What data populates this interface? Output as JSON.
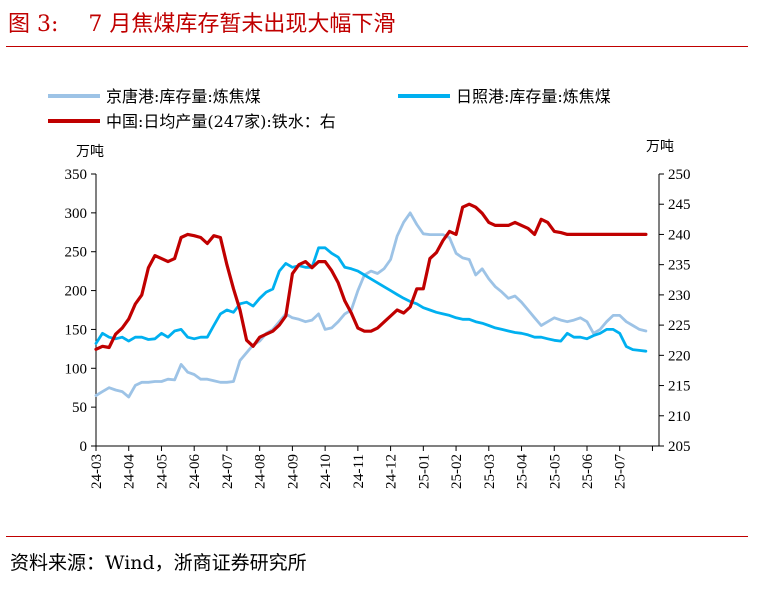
{
  "header": {
    "figure_number": "图 3:",
    "title": "7 月焦煤库存暂未出现大幅下滑"
  },
  "footer": {
    "source": "资料来源：Wind，浙商证券研究所"
  },
  "colors": {
    "title_red": "#c00000",
    "jingtang": "#9dc3e6",
    "rizhao": "#00b0f0",
    "china_iron": "#c00000"
  },
  "chart_data": {
    "type": "line",
    "y_left": {
      "unit": "万吨",
      "range": [
        0,
        350
      ],
      "ticks": [
        0,
        50,
        100,
        150,
        200,
        250,
        300,
        350
      ]
    },
    "y_right": {
      "unit": "万吨",
      "range": [
        205,
        250
      ],
      "ticks": [
        205,
        210,
        215,
        220,
        225,
        230,
        235,
        240,
        245,
        250
      ]
    },
    "x_range": [
      0,
      17.2
    ],
    "categories": [
      "24-03",
      "24-04",
      "24-05",
      "24-06",
      "24-07",
      "24-08",
      "24-09",
      "24-10",
      "24-11",
      "24-12",
      "25-01",
      "25-02",
      "25-03",
      "25-04",
      "25-05",
      "25-06",
      "25-07"
    ],
    "grid": false,
    "legend": "top",
    "series": [
      {
        "name": "京唐港:库存量:炼焦煤",
        "axis": "left",
        "color": "#9dc3e6",
        "points": [
          [
            0.0,
            65
          ],
          [
            0.2,
            70
          ],
          [
            0.4,
            75
          ],
          [
            0.6,
            72
          ],
          [
            0.8,
            70
          ],
          [
            1.0,
            63
          ],
          [
            1.2,
            78
          ],
          [
            1.4,
            82
          ],
          [
            1.6,
            82
          ],
          [
            1.8,
            83
          ],
          [
            2.0,
            83
          ],
          [
            2.2,
            86
          ],
          [
            2.4,
            85
          ],
          [
            2.6,
            105
          ],
          [
            2.8,
            95
          ],
          [
            3.0,
            92
          ],
          [
            3.2,
            86
          ],
          [
            3.4,
            86
          ],
          [
            3.6,
            84
          ],
          [
            3.8,
            82
          ],
          [
            4.0,
            82
          ],
          [
            4.2,
            83
          ],
          [
            4.4,
            110
          ],
          [
            4.6,
            120
          ],
          [
            4.8,
            130
          ],
          [
            5.0,
            135
          ],
          [
            5.2,
            145
          ],
          [
            5.4,
            150
          ],
          [
            5.6,
            160
          ],
          [
            5.8,
            170
          ],
          [
            6.0,
            165
          ],
          [
            6.2,
            163
          ],
          [
            6.4,
            160
          ],
          [
            6.6,
            162
          ],
          [
            6.8,
            170
          ],
          [
            7.0,
            150
          ],
          [
            7.2,
            152
          ],
          [
            7.4,
            160
          ],
          [
            7.6,
            170
          ],
          [
            7.8,
            175
          ],
          [
            8.0,
            200
          ],
          [
            8.2,
            220
          ],
          [
            8.4,
            225
          ],
          [
            8.6,
            222
          ],
          [
            8.8,
            228
          ],
          [
            9.0,
            240
          ],
          [
            9.2,
            270
          ],
          [
            9.4,
            288
          ],
          [
            9.6,
            300
          ],
          [
            9.8,
            285
          ],
          [
            10.0,
            273
          ],
          [
            10.2,
            272
          ],
          [
            10.4,
            272
          ],
          [
            10.6,
            272
          ],
          [
            10.8,
            268
          ],
          [
            11.0,
            248
          ],
          [
            11.2,
            242
          ],
          [
            11.4,
            240
          ],
          [
            11.6,
            220
          ],
          [
            11.8,
            228
          ],
          [
            12.0,
            215
          ],
          [
            12.2,
            205
          ],
          [
            12.4,
            198
          ],
          [
            12.6,
            190
          ],
          [
            12.8,
            193
          ],
          [
            13.0,
            185
          ],
          [
            13.2,
            175
          ],
          [
            13.4,
            165
          ],
          [
            13.6,
            155
          ],
          [
            13.8,
            160
          ],
          [
            14.0,
            165
          ],
          [
            14.2,
            162
          ],
          [
            14.4,
            160
          ],
          [
            14.6,
            162
          ],
          [
            14.8,
            165
          ],
          [
            15.0,
            160
          ],
          [
            15.2,
            145
          ],
          [
            15.4,
            150
          ],
          [
            15.6,
            160
          ],
          [
            15.8,
            168
          ],
          [
            16.0,
            168
          ],
          [
            16.2,
            160
          ],
          [
            16.4,
            155
          ],
          [
            16.6,
            150
          ],
          [
            16.8,
            148
          ]
        ]
      },
      {
        "name": "日照港:库存量:炼焦煤",
        "axis": "left",
        "color": "#00b0f0",
        "points": [
          [
            0.0,
            132
          ],
          [
            0.2,
            145
          ],
          [
            0.4,
            140
          ],
          [
            0.6,
            138
          ],
          [
            0.8,
            140
          ],
          [
            1.0,
            135
          ],
          [
            1.2,
            140
          ],
          [
            1.4,
            140
          ],
          [
            1.6,
            137
          ],
          [
            1.8,
            138
          ],
          [
            2.0,
            145
          ],
          [
            2.2,
            140
          ],
          [
            2.4,
            148
          ],
          [
            2.6,
            150
          ],
          [
            2.8,
            140
          ],
          [
            3.0,
            138
          ],
          [
            3.2,
            140
          ],
          [
            3.4,
            140
          ],
          [
            3.6,
            155
          ],
          [
            3.8,
            170
          ],
          [
            4.0,
            175
          ],
          [
            4.2,
            172
          ],
          [
            4.4,
            183
          ],
          [
            4.6,
            185
          ],
          [
            4.8,
            180
          ],
          [
            5.0,
            190
          ],
          [
            5.2,
            198
          ],
          [
            5.4,
            202
          ],
          [
            5.6,
            225
          ],
          [
            5.8,
            235
          ],
          [
            6.0,
            230
          ],
          [
            6.2,
            232
          ],
          [
            6.4,
            230
          ],
          [
            6.6,
            230
          ],
          [
            6.8,
            255
          ],
          [
            7.0,
            255
          ],
          [
            7.2,
            248
          ],
          [
            7.4,
            243
          ],
          [
            7.6,
            230
          ],
          [
            7.8,
            228
          ],
          [
            8.0,
            225
          ],
          [
            8.2,
            220
          ],
          [
            8.4,
            215
          ],
          [
            8.6,
            210
          ],
          [
            8.8,
            205
          ],
          [
            9.0,
            200
          ],
          [
            9.2,
            195
          ],
          [
            9.4,
            190
          ],
          [
            9.6,
            186
          ],
          [
            9.8,
            183
          ],
          [
            10.0,
            178
          ],
          [
            10.2,
            175
          ],
          [
            10.4,
            172
          ],
          [
            10.6,
            170
          ],
          [
            10.8,
            168
          ],
          [
            11.0,
            165
          ],
          [
            11.2,
            163
          ],
          [
            11.4,
            163
          ],
          [
            11.6,
            160
          ],
          [
            11.8,
            158
          ],
          [
            12.0,
            155
          ],
          [
            12.2,
            152
          ],
          [
            12.4,
            150
          ],
          [
            12.6,
            148
          ],
          [
            12.8,
            146
          ],
          [
            13.0,
            145
          ],
          [
            13.2,
            143
          ],
          [
            13.4,
            140
          ],
          [
            13.6,
            140
          ],
          [
            13.8,
            138
          ],
          [
            14.0,
            136
          ],
          [
            14.2,
            135
          ],
          [
            14.4,
            145
          ],
          [
            14.6,
            140
          ],
          [
            14.8,
            140
          ],
          [
            15.0,
            138
          ],
          [
            15.2,
            142
          ],
          [
            15.4,
            145
          ],
          [
            15.6,
            150
          ],
          [
            15.8,
            150
          ],
          [
            16.0,
            145
          ],
          [
            16.2,
            128
          ],
          [
            16.4,
            124
          ],
          [
            16.6,
            123
          ],
          [
            16.8,
            122
          ]
        ]
      },
      {
        "name": "中国:日均产量(247家):铁水：右",
        "axis": "right",
        "color": "#c00000",
        "points": [
          [
            0.0,
            221
          ],
          [
            0.2,
            221.5
          ],
          [
            0.4,
            221.3
          ],
          [
            0.6,
            223.5
          ],
          [
            0.8,
            224.5
          ],
          [
            1.0,
            226
          ],
          [
            1.2,
            228.5
          ],
          [
            1.4,
            230
          ],
          [
            1.6,
            234.5
          ],
          [
            1.8,
            236.5
          ],
          [
            2.0,
            236
          ],
          [
            2.2,
            235.5
          ],
          [
            2.4,
            236
          ],
          [
            2.6,
            239.5
          ],
          [
            2.8,
            240
          ],
          [
            3.0,
            239.8
          ],
          [
            3.2,
            239.5
          ],
          [
            3.4,
            238.5
          ],
          [
            3.6,
            239.8
          ],
          [
            3.8,
            239.5
          ],
          [
            4.0,
            235
          ],
          [
            4.2,
            231
          ],
          [
            4.4,
            227.5
          ],
          [
            4.6,
            222.5
          ],
          [
            4.8,
            221.5
          ],
          [
            5.0,
            223
          ],
          [
            5.2,
            223.5
          ],
          [
            5.4,
            224
          ],
          [
            5.6,
            225
          ],
          [
            5.8,
            226.5
          ],
          [
            6.0,
            233.5
          ],
          [
            6.2,
            235
          ],
          [
            6.4,
            235.5
          ],
          [
            6.6,
            234.5
          ],
          [
            6.8,
            235.5
          ],
          [
            7.0,
            235.5
          ],
          [
            7.2,
            234
          ],
          [
            7.4,
            232
          ],
          [
            7.6,
            229
          ],
          [
            7.8,
            227
          ],
          [
            8.0,
            224.5
          ],
          [
            8.2,
            224
          ],
          [
            8.4,
            224
          ],
          [
            8.6,
            224.5
          ],
          [
            8.8,
            225.5
          ],
          [
            9.0,
            226.5
          ],
          [
            9.2,
            227.5
          ],
          [
            9.4,
            227
          ],
          [
            9.6,
            228
          ],
          [
            9.8,
            231
          ],
          [
            10.0,
            231
          ],
          [
            10.2,
            236
          ],
          [
            10.4,
            237
          ],
          [
            10.6,
            239
          ],
          [
            10.8,
            240.5
          ],
          [
            11.0,
            240
          ],
          [
            11.2,
            244.5
          ],
          [
            11.4,
            245
          ],
          [
            11.6,
            244.5
          ],
          [
            11.8,
            243.5
          ],
          [
            12.0,
            242
          ],
          [
            12.2,
            241.5
          ],
          [
            12.4,
            241.5
          ],
          [
            12.6,
            241.5
          ],
          [
            12.8,
            242
          ],
          [
            13.0,
            241.5
          ],
          [
            13.2,
            241
          ],
          [
            13.4,
            240
          ],
          [
            13.6,
            242.5
          ],
          [
            13.8,
            242
          ],
          [
            14.0,
            240.5
          ],
          [
            14.2,
            240.3
          ],
          [
            14.4,
            240
          ],
          [
            14.6,
            240
          ],
          [
            14.8,
            240
          ],
          [
            15.0,
            240
          ],
          [
            15.2,
            240
          ],
          [
            15.4,
            240
          ],
          [
            15.6,
            240
          ],
          [
            15.8,
            240
          ],
          [
            16.0,
            240
          ],
          [
            16.2,
            240
          ],
          [
            16.4,
            240
          ],
          [
            16.6,
            240
          ],
          [
            16.8,
            240
          ]
        ]
      }
    ]
  }
}
